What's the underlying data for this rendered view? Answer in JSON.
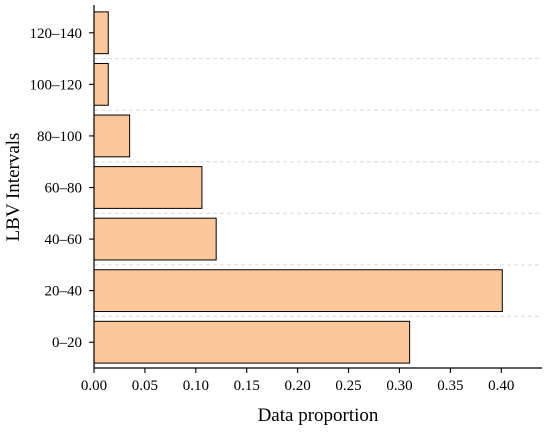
{
  "chart_data": {
    "type": "bar",
    "orientation": "horizontal",
    "categories": [
      "0–20",
      "20–40",
      "40–60",
      "60–80",
      "80–100",
      "100–120",
      "120–140"
    ],
    "values": [
      0.31,
      0.401,
      0.12,
      0.106,
      0.035,
      0.014,
      0.014
    ],
    "title": "",
    "xlabel": "Data proportion",
    "ylabel": "LBV Intervals",
    "xlim": [
      0,
      0.44
    ],
    "xticks": [
      "0.00",
      "0.05",
      "0.10",
      "0.15",
      "0.20",
      "0.25",
      "0.30",
      "0.35",
      "0.40"
    ],
    "grid": "horizontal dashed",
    "bar_color": "#FCC89B",
    "edge_color": "#000000"
  }
}
